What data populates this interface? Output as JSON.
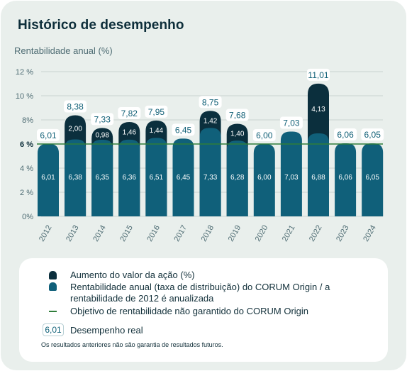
{
  "title": "Histórico de desempenho",
  "colors": {
    "dark": "#0b2f3d",
    "base": "#10607a",
    "target_line": "#2f7d3a",
    "label_text": "#ffffff",
    "top_label": "#0f5f76"
  },
  "chart_data": {
    "type": "bar",
    "title": "Histórico de desempenho",
    "ylabel": "Rentabilidade anual (%)",
    "ylim": [
      0,
      12
    ],
    "yticks": [
      "0%",
      "2 %",
      "4 %",
      "6 %",
      "8%",
      "10 %",
      "12 %"
    ],
    "target_value": 6,
    "categories": [
      "2012",
      "2013",
      "2014",
      "2015",
      "2016",
      "2017",
      "2018",
      "2019",
      "2020",
      "2021",
      "2022",
      "2023",
      "2024"
    ],
    "series": [
      {
        "name": "Rentabilidade anual (taxa de distribuição) do CORUM Origin / a rentabilidade de 2012 é anualizada",
        "values": [
          6.01,
          6.38,
          6.35,
          6.36,
          6.51,
          6.45,
          7.33,
          6.28,
          6.0,
          7.03,
          6.88,
          6.06,
          6.05
        ],
        "labels": [
          "6,01",
          "6,38",
          "6,35",
          "6,36",
          "6,51",
          "6,45",
          "7,33",
          "6,28",
          "6,00",
          "7,03",
          "6,88",
          "6,06",
          "6,05"
        ]
      },
      {
        "name": "Aumento do valor da ação (%)",
        "values": [
          0,
          2.0,
          0.98,
          1.46,
          1.44,
          0,
          1.42,
          1.4,
          0,
          0,
          4.13,
          0,
          0
        ],
        "labels": [
          "",
          "2,00",
          "0,98",
          "1,46",
          "1,44",
          "",
          "1,42",
          "1,40",
          "",
          "",
          "4,13",
          "",
          ""
        ]
      }
    ],
    "totals": [
      "6,01",
      "8,38",
      "7,33",
      "7,82",
      "7,95",
      "6,45",
      "8,75",
      "7,68",
      "6,00",
      "7,03",
      "11,01",
      "6,06",
      "6,05"
    ]
  },
  "legend": {
    "items": [
      "Aumento do valor da ação (%)",
      "Rentabilidade anual (taxa de distribuição) do CORUM Origin / a",
      "rentabilidade de 2012 é anualizada",
      "Objetivo de rentabilidade não garantido do CORUM Origin"
    ],
    "sample_value": "6,01",
    "sample_label": "Desempenho real",
    "disclaimer": "Os resultados anteriores não são garantia de resultados futuros."
  }
}
